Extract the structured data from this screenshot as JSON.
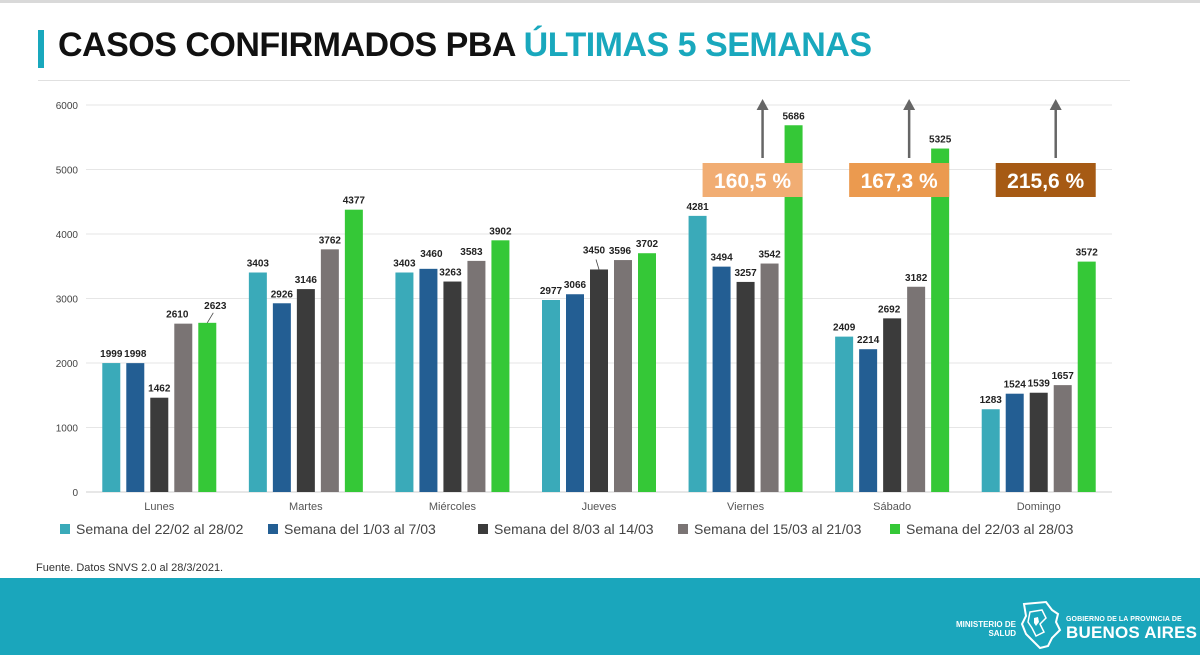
{
  "header": {
    "title_main": "CASOS CONFIRMADOS PBA",
    "title_accent": "ÚLTIMAS 5 SEMANAS"
  },
  "chart_data": {
    "type": "bar",
    "title": "CASOS CONFIRMADOS PBA ÚLTIMAS 5 SEMANAS",
    "xlabel": "",
    "ylabel": "",
    "ylim": [
      0,
      6000
    ],
    "yticks": [
      0,
      1000,
      2000,
      3000,
      4000,
      5000,
      6000
    ],
    "grid": true,
    "legend_position": "bottom",
    "categories": [
      "Lunes",
      "Martes",
      "Miércoles",
      "Jueves",
      "Viernes",
      "Sábado",
      "Domingo"
    ],
    "series": [
      {
        "name": "Semana del 22/02 al 28/02",
        "color": "#3aaab9",
        "values": [
          1999,
          3403,
          3403,
          2977,
          4281,
          2409,
          1283
        ]
      },
      {
        "name": "Semana del 1/03 al 7/03",
        "color": "#235e93",
        "values": [
          1998,
          2926,
          3460,
          3066,
          3494,
          2214,
          1524
        ]
      },
      {
        "name": "Semana del 8/03 al 14/03",
        "color": "#3b3b3b",
        "values": [
          1462,
          3146,
          3263,
          3450,
          3257,
          2692,
          1539
        ]
      },
      {
        "name": "Semana del 15/03 al 21/03",
        "color": "#7a7474",
        "values": [
          2610,
          3762,
          3583,
          3596,
          3542,
          3182,
          1657
        ]
      },
      {
        "name": "Semana del 22/03 al 28/03",
        "color": "#35c837",
        "values": [
          2623,
          4377,
          3902,
          3702,
          5686,
          5325,
          3572
        ]
      }
    ],
    "annotations": [
      {
        "category": "Viernes",
        "text": "160,5 %",
        "color": "#f1ad73"
      },
      {
        "category": "Sábado",
        "text": "167,3 %",
        "color": "#eb9a4f"
      },
      {
        "category": "Domingo",
        "text": "215,6 %",
        "color": "#a65a14"
      }
    ]
  },
  "source": "Fuente. Datos SNVS 2.0 al 28/3/2021.",
  "footer": {
    "ministerio": [
      "MINISTERIO DE",
      "SALUD"
    ],
    "gobierno_line1": "GOBIERNO DE LA PROVINCIA DE",
    "gobierno_line2": "BUENOS AIRES"
  }
}
